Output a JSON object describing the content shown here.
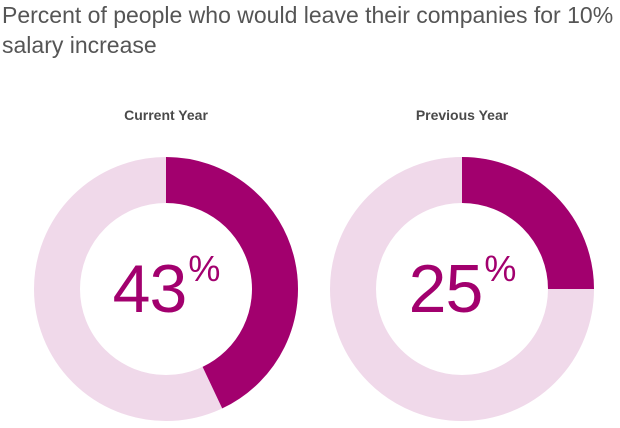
{
  "title": "Percent of people who would leave their companies for 10% salary increase",
  "colors": {
    "accent": "#a2006e",
    "track": "#f0d9ea",
    "title_text": "#555555",
    "label_text": "#4a4a4a"
  },
  "chart_data": [
    {
      "type": "pie",
      "title": "Current Year",
      "value": 43,
      "value_text": "43",
      "unit": "%",
      "max": 100
    },
    {
      "type": "pie",
      "title": "Previous Year",
      "value": 25,
      "value_text": "25",
      "unit": "%",
      "max": 100
    }
  ]
}
